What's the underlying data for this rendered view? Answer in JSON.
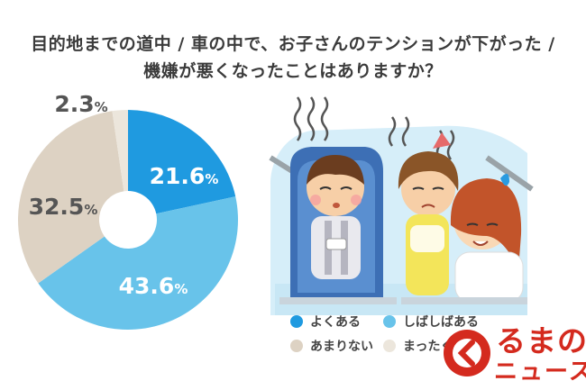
{
  "title_line1": "目的地までの道中 / 車の中で、お子さんのテンションが下がった /",
  "title_line2": "機嫌が悪くなったことはありますか？",
  "colors": {
    "yoku_aru": "#1f9ae0",
    "shibashiba": "#68c3ea",
    "amari_nai": "#ddd2c3",
    "mattaku_nai": "#ece6dc"
  },
  "chart_data": {
    "type": "pie",
    "title": "機嫌が悪くなったことはありますか？",
    "slices": [
      {
        "label": "よくある",
        "value": 21.6,
        "display": "21.6",
        "color": "#1f9ae0"
      },
      {
        "label": "しばしばある",
        "value": 43.6,
        "display": "43.6",
        "color": "#68c3ea"
      },
      {
        "label": "あまりない",
        "value": 32.5,
        "display": "32.5",
        "color": "#ddd2c3"
      },
      {
        "label": "まったくない",
        "value": 2.3,
        "display": "2.3",
        "color": "#ece6dc"
      }
    ],
    "unit": "%",
    "legend": "bottom-right"
  },
  "legend": [
    {
      "label": "よくある",
      "color": "#1f9ae0"
    },
    {
      "label": "しばしばある",
      "color": "#68c3ea"
    },
    {
      "label": "あまりない",
      "color": "#ddd2c3"
    },
    {
      "label": "まったくない",
      "color": "#ece6dc"
    }
  ],
  "logo": {
    "top": "るまの",
    "bottom": "ニュース"
  }
}
